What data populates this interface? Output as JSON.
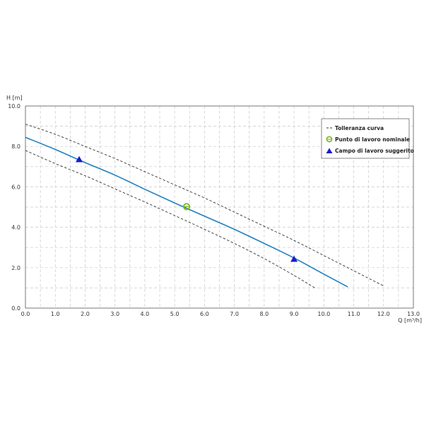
{
  "chart_data": {
    "type": "line",
    "xlabel": "Q [m³/h]",
    "ylabel": "H [m]",
    "xlim": [
      0,
      13
    ],
    "ylim": [
      0,
      10
    ],
    "x_ticks": [
      "0.0",
      "1.0",
      "2.0",
      "3.0",
      "4.0",
      "5.0",
      "6.0",
      "7.0",
      "8.0",
      "9.0",
      "10.0",
      "11.0",
      "12.0",
      "13.0"
    ],
    "y_ticks": [
      "0.0",
      "2.0",
      "4.0",
      "6.0",
      "8.0",
      "10.0"
    ],
    "grid": true,
    "legend_position": "top-right",
    "colors": {
      "curve": "#1f7fbf",
      "tolerance": "#333333",
      "nominal": "#7ab51d",
      "range": "#1a1acc"
    },
    "series": [
      {
        "name": "",
        "role": "curve",
        "x": [
          0,
          1,
          2,
          3,
          4,
          5,
          6,
          7,
          8,
          9,
          10,
          10.8
        ],
        "y": [
          8.45,
          7.85,
          7.2,
          6.58,
          5.88,
          5.2,
          4.55,
          3.9,
          3.2,
          2.48,
          1.68,
          1.05
        ]
      },
      {
        "name": "Tolleranza curva",
        "role": "tolerance-upper",
        "x": [
          0,
          1,
          2,
          3,
          4,
          5,
          6,
          7,
          8,
          9,
          10,
          11,
          12
        ],
        "y": [
          9.1,
          8.6,
          8.0,
          7.4,
          6.75,
          6.1,
          5.45,
          4.75,
          4.05,
          3.35,
          2.6,
          1.85,
          1.1
        ]
      },
      {
        "name": "",
        "role": "tolerance-lower",
        "x": [
          0,
          1,
          2,
          3,
          4,
          5,
          6,
          7,
          8,
          9,
          9.7
        ],
        "y": [
          7.8,
          7.15,
          6.55,
          5.9,
          5.25,
          4.58,
          3.9,
          3.2,
          2.45,
          1.62,
          1.0
        ]
      }
    ],
    "points": [
      {
        "name": "Punto di lavoro nominale",
        "marker": "circle",
        "x": [
          5.4
        ],
        "y": [
          5.02
        ]
      },
      {
        "name": "Campo di lavoro suggerito",
        "marker": "triangle",
        "x": [
          1.8,
          9.0
        ],
        "y": [
          7.35,
          2.42
        ]
      }
    ],
    "legend": [
      {
        "label": "Tolleranza curva",
        "symbol": "dashed-line"
      },
      {
        "label": "Punto di lavoro nominale",
        "symbol": "circle"
      },
      {
        "label": "Campo di lavoro suggerito",
        "symbol": "triangle"
      }
    ]
  }
}
